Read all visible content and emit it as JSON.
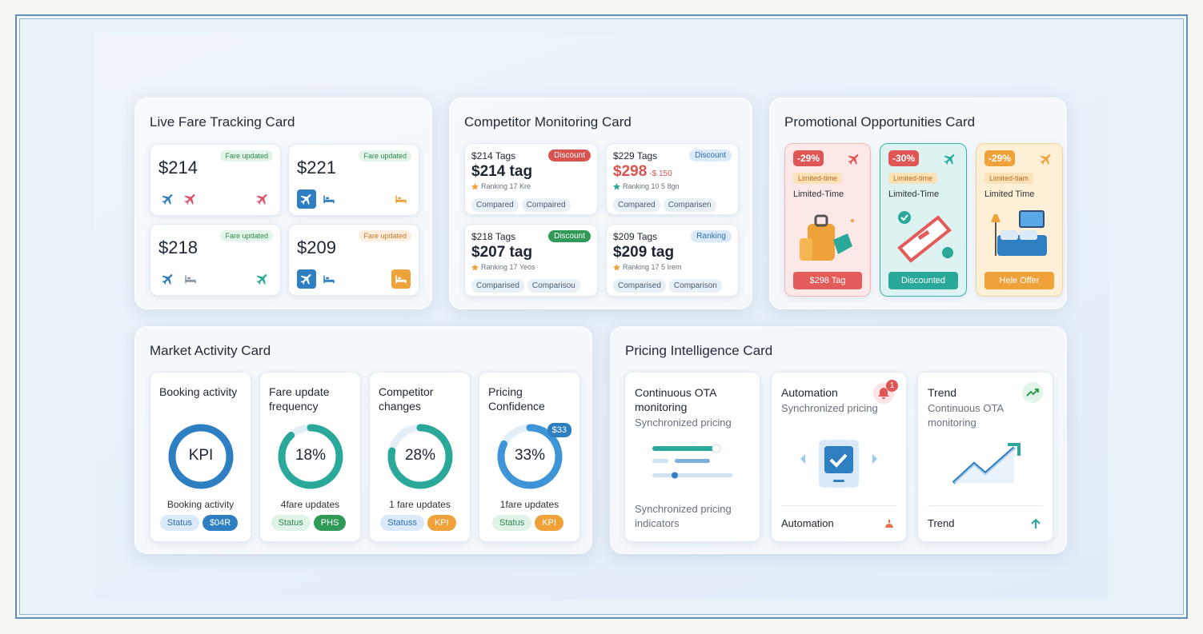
{
  "live_fare": {
    "title": "Live Fare Tracking Card",
    "tiles": [
      {
        "price": "$214",
        "badge": "Fare updated"
      },
      {
        "price": "$221",
        "badge": "Fare updated"
      },
      {
        "price": "$218",
        "badge": "Fare updated"
      },
      {
        "price": "$209",
        "badge": "Fare updated"
      }
    ]
  },
  "competitor": {
    "title": "Competitor Monitoring Card",
    "tiles": [
      {
        "label": "$214 Tags",
        "badge": "Discount",
        "price": "$214 tag",
        "ranking": "Ranking 17 Kre",
        "chips": [
          "Compared",
          "Compaired"
        ]
      },
      {
        "label": "$229 Tags",
        "badge": "Discount",
        "price": "$298",
        "old_price": "-$ 150",
        "ranking": "Ranking 10 5 8gn",
        "chips": [
          "Compared",
          "Comparisen"
        ]
      },
      {
        "label": "$218 Tags",
        "badge": "Discount",
        "price": "$207 tag",
        "ranking": "Ranking 17 Yeos",
        "chips": [
          "Comparised",
          "Comparisou"
        ]
      },
      {
        "label": "$209 Tags",
        "badge": "Ranking",
        "price": "$209 tag",
        "ranking": "Ranking 17 5 Irem",
        "chips": [
          "Comparised",
          "Comparison"
        ]
      }
    ]
  },
  "promo": {
    "title": "Promotional Opportunities Card",
    "tiles": [
      {
        "discount": "-29%",
        "tag": "Limited-time",
        "label": "Limited-Time",
        "button": "$298 Tag"
      },
      {
        "discount": "-30%",
        "tag": "Limited-time",
        "label": "Limited-Time",
        "button": "Discounted"
      },
      {
        "discount": "-29%",
        "tag": "Limited-tiam",
        "label": "Limited Time",
        "button": "Hele Offer"
      }
    ]
  },
  "market": {
    "title": "Market Activity Card",
    "tiles": [
      {
        "label": "Booking activity",
        "center": "KPI",
        "caption": "Booking activity",
        "chips": [
          "Status",
          "$04R"
        ]
      },
      {
        "label": "Fare update frequency",
        "center": "18%",
        "caption": "4fare updates",
        "chips": [
          "Status",
          "PHS"
        ]
      },
      {
        "label": "Competitor changes",
        "center": "28%",
        "caption": "1 fare updates",
        "chips": [
          "Statuss",
          "KPI"
        ]
      },
      {
        "label": "Pricing Confidence",
        "center": "33%",
        "badge": "$33",
        "caption": "1fare updates",
        "chips": [
          "Status",
          "KPI"
        ]
      }
    ]
  },
  "pricing": {
    "title": "Pricing Intelligence Card",
    "tiles": [
      {
        "title": "Continuous OTA monitoring",
        "subtitle": "Synchronized pricing",
        "footer": "Synchronized pricing indicators"
      },
      {
        "title": "Automation",
        "subtitle": "Synchronized pricing",
        "notification": "1",
        "footer": "Automation"
      },
      {
        "title": "Trend",
        "subtitle": "Continuous OTA monitoring",
        "footer": "Trend"
      }
    ]
  }
}
